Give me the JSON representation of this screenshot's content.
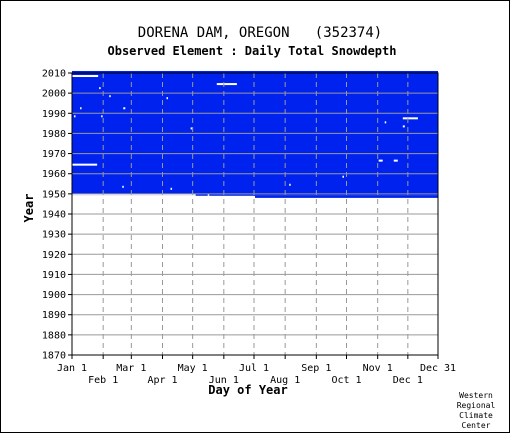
{
  "chart_data": {
    "type": "heatmap",
    "title": "DORENA DAM, OREGON   (352374)",
    "subtitle": "Observed Element : Daily Total Snowdepth",
    "xlabel": "Day of Year",
    "ylabel": "Year",
    "x_ticks_top_row": [
      "Jan 1",
      "Mar 1",
      "May 1",
      "Jul 1",
      "Sep 1",
      "Nov 1",
      "Dec 31"
    ],
    "x_ticks_bottom_row": [
      "Feb 1",
      "Apr 1",
      "Jun 1",
      "Aug 1",
      "Oct 1",
      "Dec 1"
    ],
    "y_ticks": [
      "2010",
      "2000",
      "1990",
      "1980",
      "1970",
      "1960",
      "1950",
      "1940",
      "1930",
      "1920",
      "1910",
      "1900",
      "1890",
      "1880",
      "1870"
    ],
    "ylim": [
      1870,
      2010
    ],
    "xlim": [
      1,
      365
    ],
    "data_coverage": {
      "color": "#0022ee",
      "year_start": 1948,
      "year_end": 2010,
      "partial_first_year": {
        "year": 1948,
        "day_start": 183,
        "day_end": 365
      }
    },
    "missing_segments": [
      {
        "year": 2008,
        "day_start": 1,
        "day_end": 27
      },
      {
        "year": 2004,
        "day_start": 145,
        "day_end": 165
      },
      {
        "year": 2002,
        "day_start": 28,
        "day_end": 29
      },
      {
        "year": 1998,
        "day_start": 38,
        "day_end": 39
      },
      {
        "year": 1997,
        "day_start": 95,
        "day_end": 96
      },
      {
        "year": 1992,
        "day_start": 9,
        "day_end": 10
      },
      {
        "year": 1992,
        "day_start": 52,
        "day_end": 54
      },
      {
        "year": 1988,
        "day_start": 3,
        "day_end": 4
      },
      {
        "year": 1988,
        "day_start": 30,
        "day_end": 31
      },
      {
        "year": 1987,
        "day_start": 330,
        "day_end": 345
      },
      {
        "year": 1985,
        "day_start": 312,
        "day_end": 313
      },
      {
        "year": 1983,
        "day_start": 330,
        "day_end": 332
      },
      {
        "year": 1982,
        "day_start": 119,
        "day_end": 120
      },
      {
        "year": 1966,
        "day_start": 306,
        "day_end": 310
      },
      {
        "year": 1966,
        "day_start": 321,
        "day_end": 325
      },
      {
        "year": 1964,
        "day_start": 1,
        "day_end": 26
      },
      {
        "year": 1958,
        "day_start": 270,
        "day_end": 271
      },
      {
        "year": 1954,
        "day_start": 217,
        "day_end": 218
      },
      {
        "year": 1953,
        "day_start": 51,
        "day_end": 52
      },
      {
        "year": 1952,
        "day_start": 99,
        "day_end": 100
      },
      {
        "year": 1949,
        "day_start": 1,
        "day_end": 124
      },
      {
        "year": 1949,
        "day_start": 136,
        "day_end": 137
      },
      {
        "year": 1948,
        "day_start": 1,
        "day_end": 182
      }
    ],
    "grid": true
  },
  "credit": [
    "Western",
    "Regional",
    "Climate",
    "Center"
  ]
}
